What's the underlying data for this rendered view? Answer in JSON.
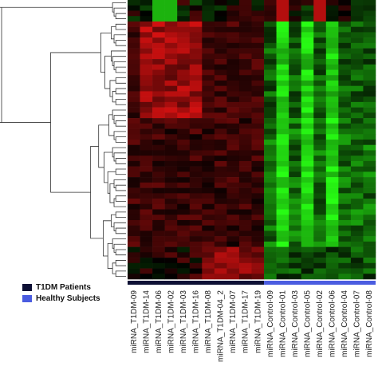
{
  "chart_data": {
    "type": "heatmap",
    "title": "",
    "xlabel": "",
    "ylabel": "",
    "columns": [
      "miRNA_T1DM-09",
      "miRNA_T1DM-14",
      "miRNA_T1DM-06",
      "miRNA_T1DM-02",
      "miRNA_T1DM-03",
      "miRNA_T1DM-16",
      "miRNA_T1DM-08",
      "miRNA_T1DM-04_2",
      "miRNA_T1DM-07",
      "miRNA_T1DM-17",
      "miRNA_T1DM-19",
      "miRNA_Control-09",
      "miRNA_Control-01",
      "miRNA_Control-03",
      "miRNA_Control-05",
      "miRNA_Control-02",
      "miRNA_Control-06",
      "miRNA_Control-04",
      "miRNA_Control-07",
      "miRNA_Control-08"
    ],
    "column_groups": [
      "T1DM",
      "T1DM",
      "T1DM",
      "T1DM",
      "T1DM",
      "T1DM",
      "T1DM",
      "T1DM",
      "T1DM",
      "T1DM",
      "T1DM",
      "Healthy",
      "Healthy",
      "Healthy",
      "Healthy",
      "Healthy",
      "Healthy",
      "Healthy",
      "Healthy",
      "Healthy"
    ],
    "row_count": 52,
    "color_scale": {
      "high": "#ff2020",
      "mid": "#000000",
      "low": "#20ff20",
      "range": [
        -1,
        1
      ]
    },
    "legend": [
      {
        "label": "T1DM Patients",
        "color": "#0d1035"
      },
      {
        "label": "Healthy Subjects",
        "color": "#4a5ce0"
      }
    ],
    "legend_position": "bottom-left"
  }
}
